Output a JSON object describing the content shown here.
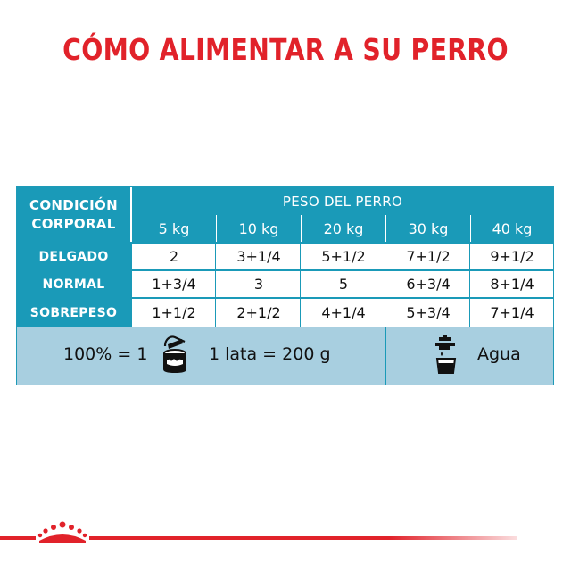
{
  "title": "CÓMO ALIMENTAR A SU PERRO",
  "table": {
    "condition_header_1": "CONDICIÓN",
    "condition_header_2": "CORPORAL",
    "weight_header": "PESO DEL PERRO",
    "weights": [
      "5 kg",
      "10 kg",
      "20 kg",
      "30 kg",
      "40 kg"
    ],
    "rows": [
      {
        "label": "DELGADO",
        "values": [
          "2",
          "3+1/4",
          "5+1/2",
          "7+1/2",
          "9+1/2"
        ]
      },
      {
        "label": "NORMAL",
        "values": [
          "1+3/4",
          "3",
          "5",
          "6+3/4",
          "8+1/4"
        ]
      },
      {
        "label": "SOBREPESO",
        "values": [
          "1+1/2",
          "2+1/2",
          "4+1/4",
          "5+3/4",
          "7+1/4"
        ]
      }
    ]
  },
  "footer": {
    "ratio": "100% = 1",
    "can_text": "1 lata = 200 g",
    "water": "Agua",
    "can_icon": "can-icon",
    "water_icon": "water-tap-icon"
  },
  "brand": {
    "logo": "crown-logo",
    "color": "#e1222a",
    "accent": "#1a9ab8",
    "footer_bg": "#a8cfe0"
  }
}
